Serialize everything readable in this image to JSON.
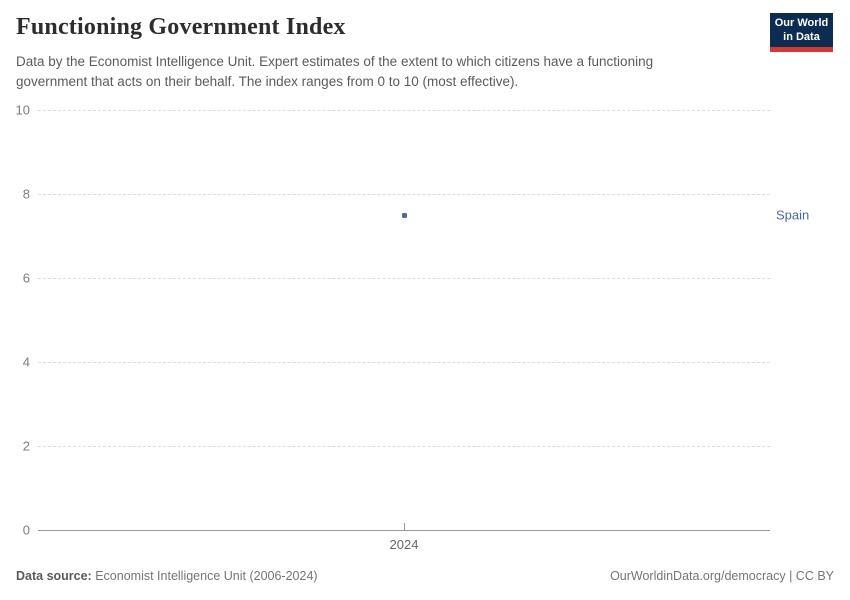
{
  "header": {
    "title": "Functioning Government Index",
    "subtitle": "Data by the Economist Intelligence Unit. Expert estimates of the extent to which citizens have a functioning government that acts on their behalf. The index ranges from 0 to 10 (most effective).",
    "logo": {
      "line1": "Our World",
      "line2": "in Data",
      "bg_color": "#0c2d52",
      "accent_color": "#d8382e"
    }
  },
  "chart_data": {
    "type": "scatter",
    "title": "Functioning Government Index",
    "series": [
      {
        "name": "Spain",
        "x": [
          2024
        ],
        "values": [
          7.5
        ],
        "color": "#4c6a9c"
      }
    ],
    "x_ticks": [
      "2024"
    ],
    "y_ticks": [
      0,
      2,
      4,
      6,
      8,
      10
    ],
    "ylim": [
      0,
      10
    ],
    "xlabel": "",
    "ylabel": "",
    "grid": true,
    "gridline_style": "dashed",
    "legend_position": "right-of-point"
  },
  "footer": {
    "source_label": "Data source:",
    "source_text": "Economist Intelligence Unit (2006-2024)",
    "credit": "OurWorldinData.org/democracy | CC BY"
  }
}
